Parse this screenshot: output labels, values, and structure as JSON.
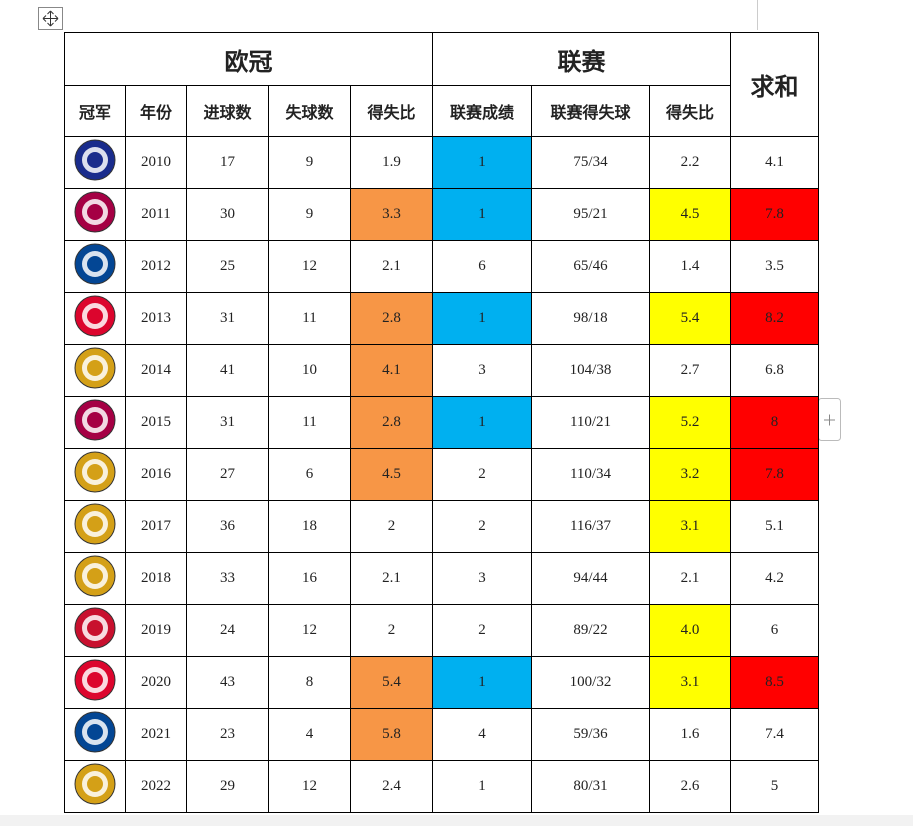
{
  "table": {
    "group_headers": [
      "欧冠",
      "联赛",
      "求和"
    ],
    "column_headers": [
      "冠军",
      "年份",
      "进球数",
      "失球数",
      "得失比",
      "联赛成绩",
      "联赛得失球",
      "得失比"
    ],
    "rows": [
      [
        "2010",
        "17",
        "9",
        "1.9",
        "1",
        "75/34",
        "2.2",
        "4.1"
      ],
      [
        "2011",
        "30",
        "9",
        "3.3",
        "1",
        "95/21",
        "4.5",
        "7.8"
      ],
      [
        "2012",
        "25",
        "12",
        "2.1",
        "6",
        "65/46",
        "1.4",
        "3.5"
      ],
      [
        "2013",
        "31",
        "11",
        "2.8",
        "1",
        "98/18",
        "5.4",
        "8.2"
      ],
      [
        "2014",
        "41",
        "10",
        "4.1",
        "3",
        "104/38",
        "2.7",
        "6.8"
      ],
      [
        "2015",
        "31",
        "11",
        "2.8",
        "1",
        "110/21",
        "5.2",
        "8"
      ],
      [
        "2016",
        "27",
        "6",
        "4.5",
        "2",
        "110/34",
        "3.2",
        "7.8"
      ],
      [
        "2017",
        "36",
        "18",
        "2",
        "2",
        "116/37",
        "3.1",
        "5.1"
      ],
      [
        "2018",
        "33",
        "16",
        "2.1",
        "3",
        "94/44",
        "2.1",
        "4.2"
      ],
      [
        "2019",
        "24",
        "12",
        "2",
        "2",
        "89/22",
        "4.0",
        "6"
      ],
      [
        "2020",
        "43",
        "8",
        "5.4",
        "1",
        "100/32",
        "3.1",
        "8.5"
      ],
      [
        "2021",
        "23",
        "4",
        "5.8",
        "4",
        "59/36",
        "1.6",
        "7.4"
      ],
      [
        "2022",
        "29",
        "12",
        "2.4",
        "1",
        "80/31",
        "2.6",
        "5"
      ]
    ],
    "cell_colors": [
      [
        null,
        null,
        null,
        null,
        "#00b0f0",
        null,
        null,
        null
      ],
      [
        null,
        null,
        null,
        "#f79646",
        "#00b0f0",
        null,
        "#ffff00",
        "#ff0000"
      ],
      [
        null,
        null,
        null,
        null,
        null,
        null,
        null,
        null
      ],
      [
        null,
        null,
        null,
        "#f79646",
        "#00b0f0",
        null,
        "#ffff00",
        "#ff0000"
      ],
      [
        null,
        null,
        null,
        "#f79646",
        null,
        null,
        null,
        null
      ],
      [
        null,
        null,
        null,
        "#f79646",
        "#00b0f0",
        null,
        "#ffff00",
        "#ff0000"
      ],
      [
        null,
        null,
        null,
        "#f79646",
        null,
        null,
        "#ffff00",
        "#ff0000"
      ],
      [
        null,
        null,
        null,
        null,
        null,
        null,
        "#ffff00",
        null
      ],
      [
        null,
        null,
        null,
        null,
        null,
        null,
        null,
        null
      ],
      [
        null,
        null,
        null,
        null,
        null,
        null,
        "#ffff00",
        null
      ],
      [
        null,
        null,
        null,
        "#f79646",
        "#00b0f0",
        null,
        "#ffff00",
        "#ff0000"
      ],
      [
        null,
        null,
        null,
        "#f79646",
        null,
        null,
        null,
        null
      ],
      [
        null,
        null,
        null,
        null,
        null,
        null,
        null,
        null
      ]
    ],
    "badge_colors": [
      "#1a2c8c",
      "#a50044",
      "#034694",
      "#dc052d",
      "#d4a017",
      "#a50044",
      "#d4a017",
      "#d4a017",
      "#d4a017",
      "#c8102e",
      "#dc052d",
      "#034694",
      "#d4a017"
    ]
  }
}
